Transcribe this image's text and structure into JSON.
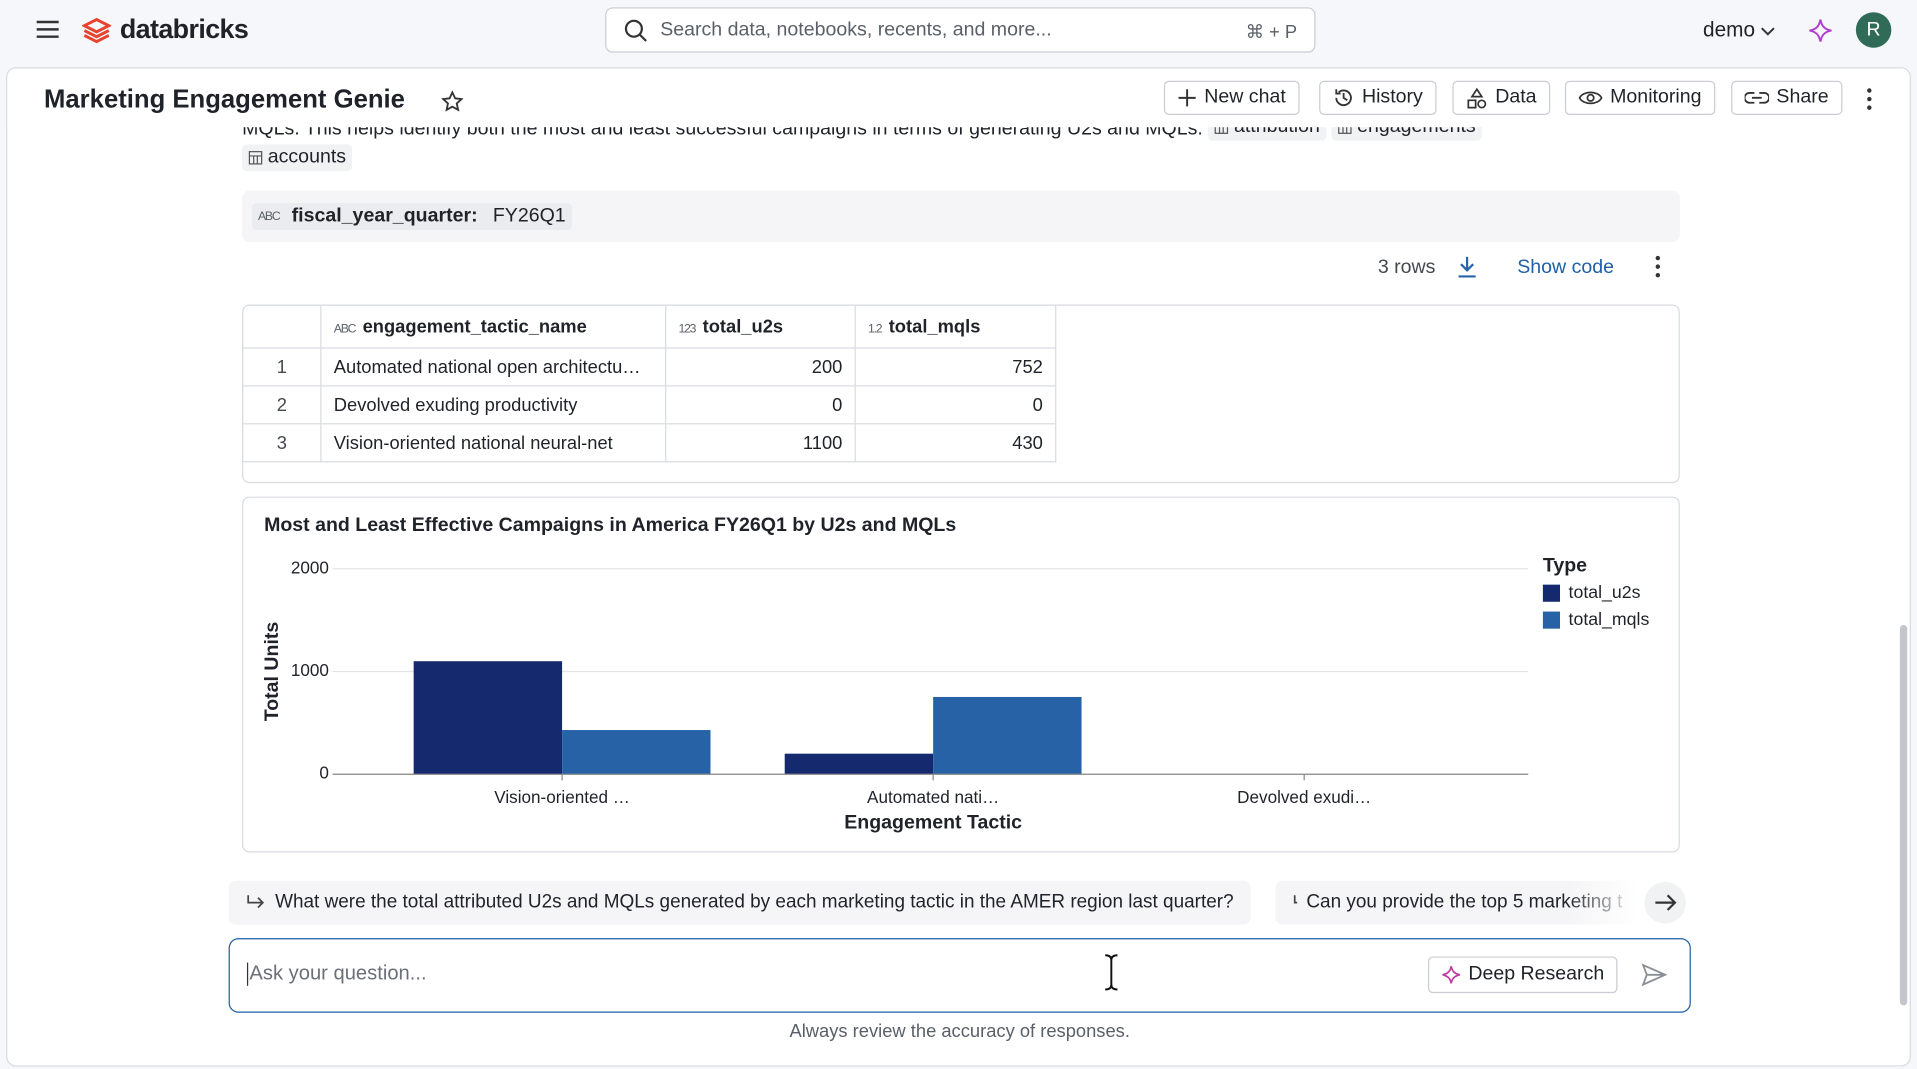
{
  "nav": {
    "brand": "databricks",
    "search_placeholder": "Search data, notebooks, recents, and more...",
    "search_shortcut": "⌘ + P",
    "workspace": "demo",
    "avatar": "R"
  },
  "header": {
    "title": "Marketing Engagement Genie",
    "actions": [
      "New chat",
      "History",
      "Data",
      "Monitoring",
      "Share"
    ]
  },
  "message": {
    "text": "MQLs. This helps identify both the most and least successful campaigns in terms of generating U2s and MQLs.",
    "tables": [
      "attribution",
      "engagements",
      "accounts"
    ]
  },
  "filter": {
    "type": "ABC",
    "name": "fiscal_year_quarter:",
    "value": "FY26Q1"
  },
  "result": {
    "row_count": "3 rows",
    "show_code": "Show code"
  },
  "table": {
    "column_types": [
      "ABC",
      "123",
      "1.2"
    ],
    "columns": [
      "engagement_tactic_name",
      "total_u2s",
      "total_mqls"
    ],
    "rows": [
      [
        1,
        "Automated national open architectu…",
        200,
        752
      ],
      [
        2,
        "Devolved exuding productivity",
        0,
        0
      ],
      [
        3,
        "Vision-oriented national neural-net",
        1100,
        430
      ]
    ]
  },
  "chart_data": {
    "type": "bar",
    "title": "Most and Least Effective Campaigns in America FY26Q1 by U2s and MQLs",
    "x_label": "Engagement Tactic",
    "y_label": "Total Units",
    "legend_title": "Type",
    "legend": "right",
    "grid": true,
    "categories": [
      "Vision-oriented …",
      "Automated nati…",
      "Devolved exudi…"
    ],
    "series": [
      {
        "name": "total_u2s",
        "color": "#15296e",
        "values": [
          1100,
          200,
          0
        ]
      },
      {
        "name": "total_mqls",
        "color": "#2762a6",
        "values": [
          430,
          752,
          0
        ]
      }
    ],
    "ylim": [
      0,
      2000
    ],
    "yticks": [
      0,
      1000,
      2000
    ]
  },
  "suggestions": [
    "What were the total attributed U2s and MQLs generated by each marketing tactic in the AMER region last quarter?",
    "Can you provide the top 5 marketing t"
  ],
  "input": {
    "placeholder": "Ask your question...",
    "deep_research": "Deep Research"
  },
  "footer": "Always review the accuracy of responses."
}
